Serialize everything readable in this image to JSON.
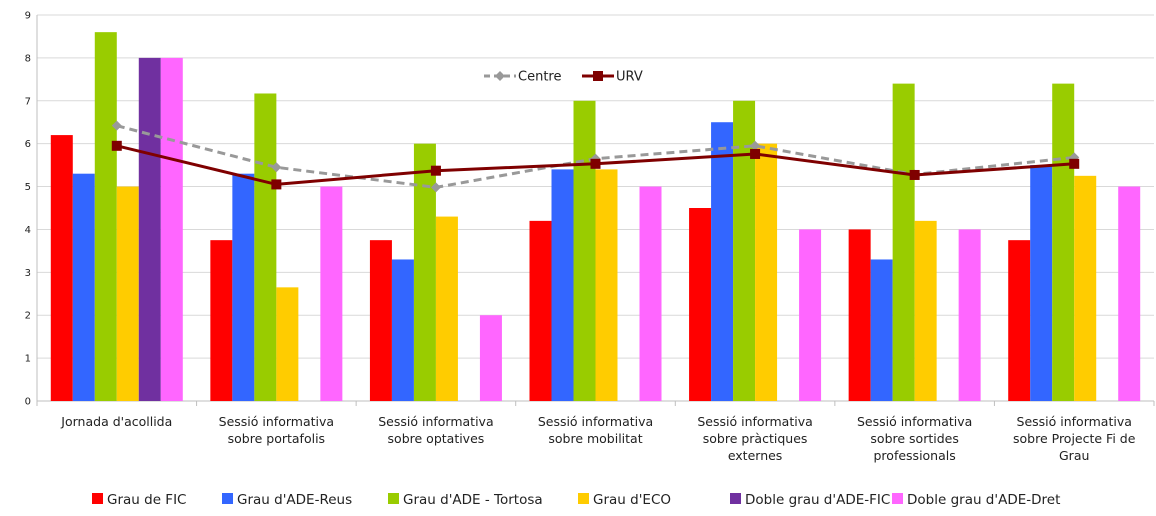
{
  "chart_data": {
    "type": "bar",
    "title": "",
    "xlabel": "",
    "ylabel": "",
    "ylim": [
      0,
      9
    ],
    "yticks": [
      0,
      1,
      2,
      3,
      4,
      5,
      6,
      7,
      8,
      9
    ],
    "grid": true,
    "categories": [
      [
        "Jornada d'acollida"
      ],
      [
        "Sessió informativa",
        "sobre portafolis"
      ],
      [
        "Sessió informativa",
        "sobre optatives"
      ],
      [
        "Sessió informativa",
        "sobre mobilitat"
      ],
      [
        "Sessió informativa",
        "sobre pràctiques",
        "externes"
      ],
      [
        "Sessió informativa",
        "sobre sortides",
        "professionals"
      ],
      [
        "Sessió informativa",
        "sobre Projecte Fi de",
        "Grau"
      ]
    ],
    "series": [
      {
        "name": "Grau de FIC",
        "color": "#ff0000",
        "values": [
          6.2,
          3.75,
          3.75,
          4.2,
          4.5,
          4.0,
          3.75
        ]
      },
      {
        "name": "Grau d'ADE-Reus",
        "color": "#3366ff",
        "values": [
          5.3,
          5.3,
          3.3,
          5.4,
          6.5,
          3.3,
          5.5
        ]
      },
      {
        "name": "Grau d'ADE - Tortosa",
        "color": "#99cc00",
        "values": [
          8.6,
          7.17,
          6.0,
          7.0,
          7.0,
          7.4,
          7.4
        ]
      },
      {
        "name": "Grau d'ECO",
        "color": "#ffcc00",
        "values": [
          5.0,
          2.65,
          4.3,
          5.4,
          6.0,
          4.2,
          5.25
        ]
      },
      {
        "name": "Doble grau d'ADE-FIC",
        "color": "#7030a0",
        "values": [
          8.0,
          null,
          null,
          null,
          null,
          null,
          null
        ]
      },
      {
        "name": "Doble grau d'ADE-Dret",
        "color": "#ff66ff",
        "values": [
          8.0,
          5.0,
          2.0,
          5.0,
          4.0,
          4.0,
          5.0
        ]
      }
    ],
    "lines": [
      {
        "name": "Centre",
        "color": "#999999",
        "style": "dashed",
        "marker": "diamond",
        "values": [
          6.42,
          5.45,
          4.98,
          5.65,
          5.95,
          5.28,
          5.68
        ]
      },
      {
        "name": "URV",
        "color": "#7f0000",
        "style": "solid",
        "marker": "square",
        "values": [
          5.95,
          5.05,
          5.37,
          5.53,
          5.76,
          5.27,
          5.53
        ]
      }
    ],
    "legend_position": "bottom",
    "line_legend_position": "top-center"
  }
}
